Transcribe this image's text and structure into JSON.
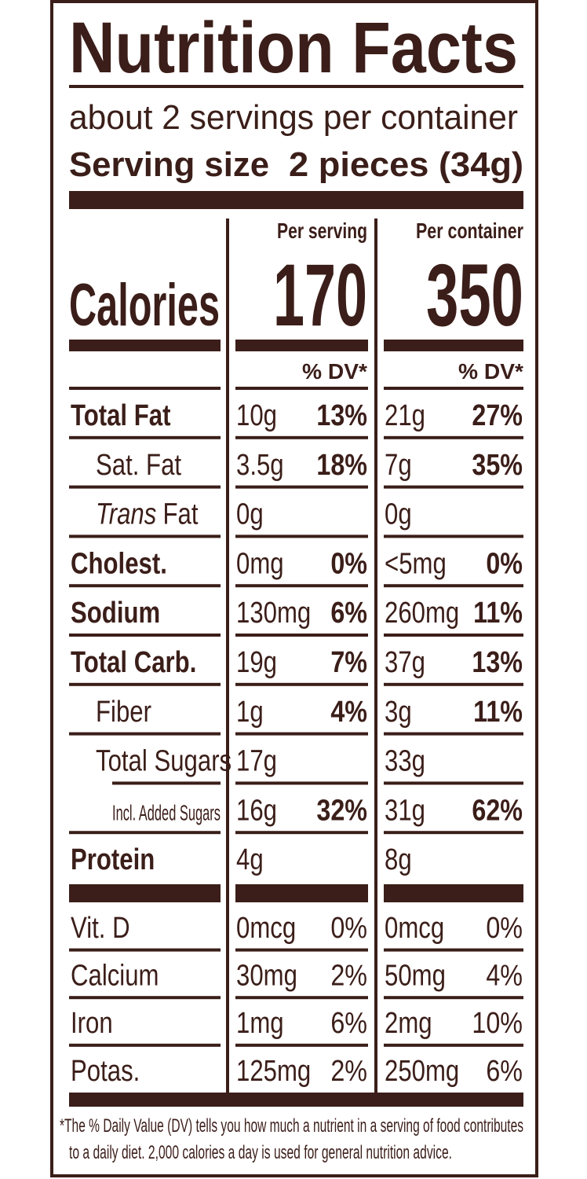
{
  "title": "Nutrition Facts",
  "servings": "about 2 servings per container",
  "serving_size": {
    "label": "Serving size",
    "value": "2 pieces (34g)"
  },
  "columns": [
    "Per serving",
    "Per container"
  ],
  "calories": {
    "label": "Calories",
    "per_serving": "170",
    "per_container": "350"
  },
  "dv_header": "% DV*",
  "nutrients": [
    {
      "label": "Total Fat",
      "per_serving": [
        "10g",
        "13%"
      ],
      "per_container": [
        "21g",
        "27%"
      ],
      "sub": [
        {
          "label": "Sat. Fat",
          "per_serving": [
            "3.5g",
            "18%"
          ],
          "per_container": [
            "7g",
            "35%"
          ]
        },
        {
          "label_italic": "Trans",
          "label": "Fat",
          "per_serving": [
            "0g"
          ],
          "per_container": [
            "0g"
          ]
        }
      ]
    },
    {
      "label": "Cholest.",
      "per_serving": [
        "0mg",
        "0%"
      ],
      "per_container": [
        "<5mg",
        "0%"
      ]
    },
    {
      "label": "Sodium",
      "per_serving": [
        "130mg",
        "6%"
      ],
      "per_container": [
        "260mg",
        "11%"
      ]
    },
    {
      "label": "Total Carb.",
      "per_serving": [
        "19g",
        "7%"
      ],
      "per_container": [
        "37g",
        "13%"
      ],
      "sub": [
        {
          "label": "Fiber",
          "per_serving": [
            "1g",
            "4%"
          ],
          "per_container": [
            "3g",
            "11%"
          ]
        },
        {
          "label": "Total Sugars",
          "per_serving": [
            "17g"
          ],
          "per_container": [
            "33g"
          ],
          "sub": [
            {
              "label": "Incl. Added Sugars",
              "per_serving": [
                "16g",
                "32%"
              ],
              "per_container": [
                "31g",
                "62%"
              ]
            }
          ]
        }
      ]
    },
    {
      "label": "Protein",
      "per_serving": [
        "4g"
      ],
      "per_container": [
        "8g"
      ]
    }
  ],
  "vitamins": [
    {
      "label": "Vit. D",
      "per_serving": [
        "0mcg",
        "0%"
      ],
      "per_container": [
        "0mcg",
        "0%"
      ]
    },
    {
      "label": "Calcium",
      "per_serving": [
        "30mg",
        "2%"
      ],
      "per_container": [
        "50mg",
        "4%"
      ]
    },
    {
      "label": "Iron",
      "per_serving": [
        "1mg",
        "6%"
      ],
      "per_container": [
        "2mg",
        "10%"
      ]
    },
    {
      "label": "Potas.",
      "per_serving": [
        "125mg",
        "2%"
      ],
      "per_container": [
        "250mg",
        "6%"
      ]
    }
  ],
  "footnote": [
    "*The % Daily Value (DV) tells you how much a nutrient in a serving of food contributes",
    "to a daily diet. 2,000 calories a day is used for general nutrition advice."
  ]
}
